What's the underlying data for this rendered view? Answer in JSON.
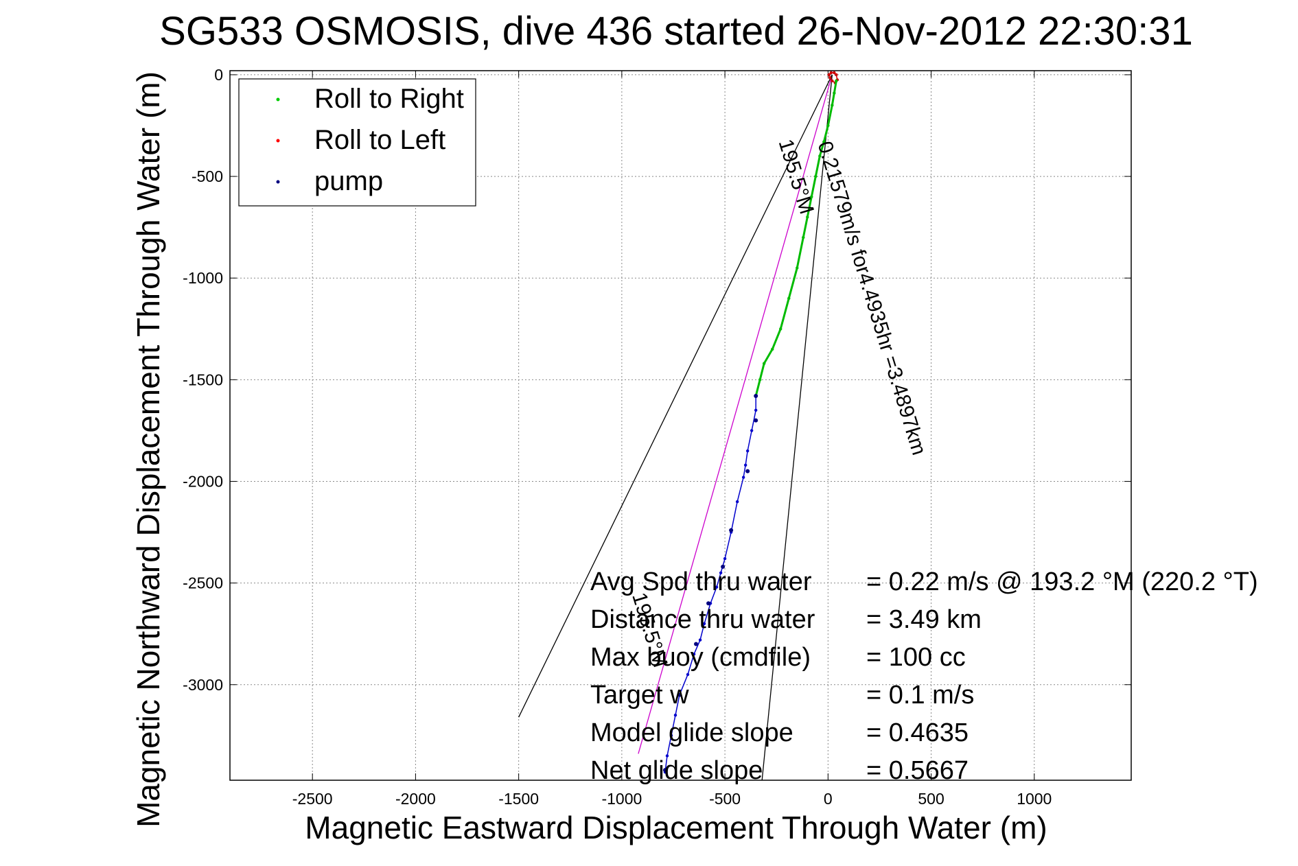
{
  "chart_data": {
    "type": "line",
    "title": "SG533 OSMOSIS, dive 436 started 26-Nov-2012 22:30:31",
    "xlabel": "Magnetic Eastward Displacement Through Water (m)",
    "ylabel": "Magnetic Northward Displacement Through Water (m)",
    "xlim": [
      -2900,
      1470
    ],
    "ylim": [
      -3470,
      20
    ],
    "xticks": [
      -2500,
      -2000,
      -1500,
      -1000,
      -500,
      0,
      500,
      1000
    ],
    "yticks": [
      0,
      -500,
      -1000,
      -1500,
      -2000,
      -2500,
      -3000
    ],
    "grid": true,
    "legend": {
      "placement": "top-left",
      "entries": [
        {
          "label": "Roll to Right",
          "color": "#00cc00"
        },
        {
          "label": "Roll to Left",
          "color": "#ff0000"
        },
        {
          "label": "pump",
          "color": "#000080"
        }
      ]
    },
    "series": [
      {
        "name": "track-near-surface",
        "color": "#cc0000",
        "x": [
          5,
          15,
          30,
          40,
          45,
          35,
          20,
          10,
          5
        ],
        "y": [
          0,
          10,
          10,
          0,
          -25,
          -40,
          -30,
          -15,
          0
        ]
      },
      {
        "name": "track-descent",
        "color": "#00bb00",
        "x": [
          40,
          30,
          20,
          0,
          -20,
          -40,
          -60,
          -80,
          -100,
          -120,
          -150,
          -190,
          -230,
          -270,
          -310,
          -330,
          -350
        ],
        "y": [
          -30,
          -90,
          -150,
          -250,
          -330,
          -400,
          -500,
          -600,
          -700,
          -800,
          -950,
          -1100,
          -1250,
          -1350,
          -1420,
          -1500,
          -1580
        ]
      },
      {
        "name": "track-deep",
        "color": "#0000cc",
        "x": [
          -350,
          -350,
          -370,
          -390,
          -400,
          -410,
          -440,
          -470,
          -500,
          -520,
          -540,
          -570,
          -600,
          -620,
          -650,
          -680,
          -720,
          -740,
          -760,
          -780,
          -790
        ],
        "y": [
          -1580,
          -1650,
          -1750,
          -1850,
          -1920,
          -1980,
          -2100,
          -2250,
          -2380,
          -2450,
          -2520,
          -2600,
          -2700,
          -2780,
          -2850,
          -2950,
          -3050,
          -3150,
          -3250,
          -3350,
          -3430
        ]
      }
    ],
    "reference_lines": [
      {
        "name": "bearing-line-magenta",
        "color": "#cc00cc",
        "from": [
          20,
          0
        ],
        "to": [
          -920,
          -3340
        ]
      },
      {
        "name": "cone-line-left",
        "color": "#000000",
        "from": [
          20,
          0
        ],
        "to": [
          -1500,
          -3160
        ]
      },
      {
        "name": "cone-line-right",
        "color": "#000000",
        "from": [
          20,
          0
        ],
        "to": [
          -320,
          -3470
        ]
      }
    ],
    "pump_points": [
      {
        "x": -350,
        "y": -1580
      },
      {
        "x": -350,
        "y": -1700
      },
      {
        "x": -390,
        "y": -1950
      },
      {
        "x": -470,
        "y": -2240
      },
      {
        "x": -510,
        "y": -2420
      },
      {
        "x": -580,
        "y": -2600
      },
      {
        "x": -640,
        "y": -2800
      },
      {
        "x": -720,
        "y": -3050
      },
      {
        "x": -790,
        "y": -3420
      }
    ],
    "annotations": [
      {
        "text": "0.21579m/s for4.4935hr =3.4897km",
        "x": -50,
        "y": -340,
        "rotation": 73
      },
      {
        "text": "195.5°M",
        "x": -240,
        "y": -330,
        "rotation": 73
      },
      {
        "text": "195.5°M",
        "x": -950,
        "y": -2560,
        "rotation": 73
      }
    ],
    "stats": [
      {
        "label": "Avg Spd thru water",
        "value": "=  0.22 m/s @ 193.2 °M (220.2 °T)"
      },
      {
        "label": "Distance thru water",
        "value": "=  3.49 km"
      },
      {
        "label": "Max buoy (cmdfile)",
        "value": "= 100 cc"
      },
      {
        "label": "Target w",
        "value": "= 0.1 m/s"
      },
      {
        "label": "Model glide slope",
        "value": "= 0.4635"
      },
      {
        "label": "Net glide slope",
        "value": "= 0.5667"
      }
    ]
  }
}
